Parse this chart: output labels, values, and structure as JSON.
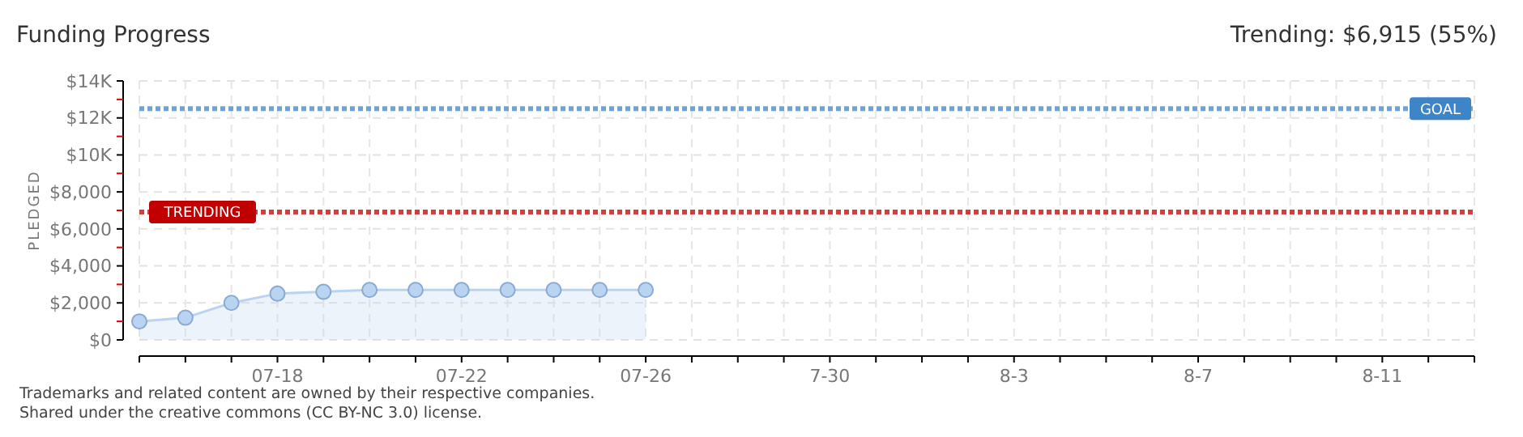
{
  "chart_data": {
    "type": "area",
    "title": "Funding Progress",
    "ylabel": "PLEDGED",
    "x": [
      "--07-15",
      "--07-16",
      "--07-17",
      "--07-18",
      "--07-19",
      "--07-20",
      "--07-21",
      "--07-22",
      "--07-23",
      "--07-24",
      "--07-25",
      "--07-26"
    ],
    "series": [
      {
        "color": "#b9d4f1",
        "values": [
          1000,
          1200,
          2000,
          2500,
          2600,
          2700,
          2700,
          2700,
          2700,
          2700,
          2700,
          2700
        ]
      }
    ],
    "marker": "circle",
    "line_style": "solid",
    "grid": true,
    "ylim": [
      0,
      14000
    ],
    "yticks": [
      {
        "value": 0,
        "label": "$0"
      },
      {
        "value": 1000,
        "label": null
      },
      {
        "value": 2000,
        "label": "$2,000"
      },
      {
        "value": 3000,
        "label": null
      },
      {
        "value": 4000,
        "label": "$4,000"
      },
      {
        "value": 5000,
        "label": null
      },
      {
        "value": 6000,
        "label": "$6,000"
      },
      {
        "value": 7000,
        "label": null
      },
      {
        "value": 8000,
        "label": "$8,000"
      },
      {
        "value": 9000,
        "label": null
      },
      {
        "value": 10000,
        "label": "$10K"
      },
      {
        "value": 11000,
        "label": null
      },
      {
        "value": 12000,
        "label": "$12K"
      },
      {
        "value": 13000,
        "label": null
      },
      {
        "value": 14000,
        "label": "$14K"
      }
    ],
    "xlim": [
      "--07-15",
      "--08-13"
    ],
    "xticks": [
      {
        "value": "--07-15",
        "label": null
      },
      {
        "value": "--07-16",
        "label": null
      },
      {
        "value": "--07-17",
        "label": null
      },
      {
        "value": "--07-18",
        "label": "07-18"
      },
      {
        "value": "--07-19",
        "label": null
      },
      {
        "value": "--07-20",
        "label": null
      },
      {
        "value": "--07-21",
        "label": null
      },
      {
        "value": "--07-22",
        "label": "07-22"
      },
      {
        "value": "--07-23",
        "label": null
      },
      {
        "value": "--07-24",
        "label": null
      },
      {
        "value": "--07-25",
        "label": null
      },
      {
        "value": "--07-26",
        "label": "07-26"
      },
      {
        "value": "--07-27",
        "label": null
      },
      {
        "value": "--07-28",
        "label": null
      },
      {
        "value": "--07-29",
        "label": null
      },
      {
        "value": "--07-30",
        "label": "7-30"
      },
      {
        "value": "--07-31",
        "label": null
      },
      {
        "value": "--08-01",
        "label": null
      },
      {
        "value": "--08-02",
        "label": null
      },
      {
        "value": "--08-03",
        "label": "8-3"
      },
      {
        "value": "--08-04",
        "label": null
      },
      {
        "value": "--08-05",
        "label": null
      },
      {
        "value": "--08-06",
        "label": null
      },
      {
        "value": "--08-07",
        "label": "8-7"
      },
      {
        "value": "--08-08",
        "label": null
      },
      {
        "value": "--08-09",
        "label": null
      },
      {
        "value": "--08-10",
        "label": null
      },
      {
        "value": "--08-11",
        "label": "8-11"
      },
      {
        "value": "--08-12",
        "label": null
      },
      {
        "value": "--08-13",
        "label": null
      }
    ],
    "ref_lines": [
      {
        "axis": "y",
        "value": 6915,
        "label": "TRENDING",
        "color": "#c00000",
        "line_style": "dotted"
      },
      {
        "axis": "y",
        "value": 12500,
        "label": "GOAL",
        "color": "#3d85c6",
        "line_style": "dotted"
      }
    ],
    "annotations": [
      "Trending: $6,915 (55%)",
      "Trademarks and related content are owned by their respective companies.",
      "Shared under the creative commons (CC BY-NC 3.0) license."
    ]
  }
}
